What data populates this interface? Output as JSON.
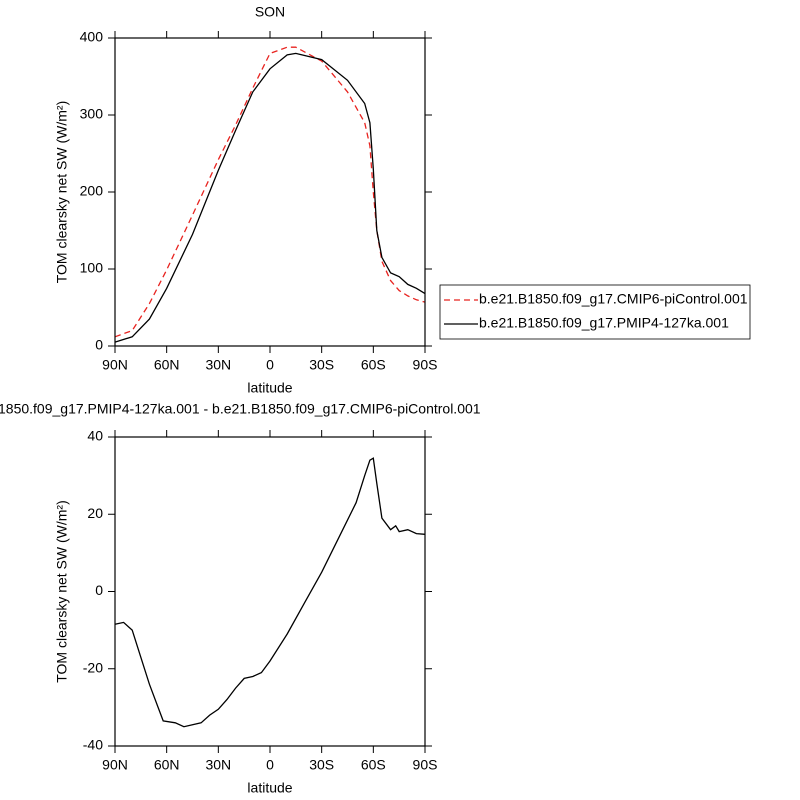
{
  "chart_data": [
    {
      "type": "line",
      "title": "SON",
      "xlabel": "latitude",
      "ylabel": "TOM clearsky net SW (W/m²)",
      "x": [
        90,
        80,
        70,
        60,
        45,
        30,
        20,
        10,
        0,
        -10,
        -15,
        -30,
        -45,
        -55,
        -58,
        -60,
        -62,
        -65,
        -70,
        -75,
        -80,
        -85,
        -90
      ],
      "xlim": [
        90,
        -90
      ],
      "xticks": [
        {
          "value": 90,
          "label": "90N"
        },
        {
          "value": 60,
          "label": "60N"
        },
        {
          "value": 30,
          "label": "30N"
        },
        0,
        {
          "value": -30,
          "label": "30S"
        },
        {
          "value": -60,
          "label": "60S"
        },
        {
          "value": -90,
          "label": "90S"
        }
      ],
      "ylim": [
        0,
        400
      ],
      "yticks": [
        0,
        100,
        200,
        300,
        400
      ],
      "legend": "right",
      "series": [
        {
          "name": "b.e21.B1850.f09_g17.CMIP6-piControl.001",
          "color": "#e8231f",
          "dash": true,
          "values": [
            12,
            20,
            55,
            99,
            170,
            242,
            287,
            335,
            380,
            388,
            388,
            370,
            330,
            290,
            260,
            200,
            150,
            110,
            85,
            72,
            65,
            60,
            57
          ]
        },
        {
          "name": "b.e21.B1850.f09_g17.PMIP4-127ka.001",
          "color": "#000000",
          "dash": false,
          "values": [
            5,
            12,
            35,
            75,
            145,
            228,
            280,
            330,
            360,
            378,
            380,
            372,
            345,
            315,
            290,
            230,
            150,
            115,
            95,
            90,
            80,
            75,
            68
          ]
        }
      ]
    },
    {
      "type": "line",
      "title": "1850.f09_g17.PMIP4-127ka.001 - b.e21.B1850.f09_g17.CMIP6-piControl.001",
      "xlabel": "latitude",
      "ylabel": "TOM clearsky net SW (W/m²)",
      "x": [
        90,
        85,
        80,
        75,
        70,
        65,
        62,
        55,
        50,
        45,
        40,
        35,
        30,
        25,
        20,
        15,
        10,
        5,
        0,
        -10,
        -20,
        -30,
        -40,
        -50,
        -55,
        -58,
        -60,
        -62,
        -65,
        -70,
        -73,
        -75,
        -80,
        -85,
        -90
      ],
      "xlim": [
        90,
        -90
      ],
      "xticks": [
        {
          "value": 90,
          "label": "90N"
        },
        {
          "value": 60,
          "label": "60N"
        },
        {
          "value": 30,
          "label": "30N"
        },
        0,
        {
          "value": -30,
          "label": "30S"
        },
        {
          "value": -60,
          "label": "60S"
        },
        {
          "value": -90,
          "label": "90S"
        }
      ],
      "ylim": [
        -40,
        40
      ],
      "yticks": [
        -40,
        -20,
        0,
        20,
        40
      ],
      "series": [
        {
          "color": "#000000",
          "dash": false,
          "values": [
            -8.5,
            -8,
            -10,
            -17,
            -24,
            -30,
            -33.5,
            -34,
            -35,
            -34.5,
            -34,
            -32,
            -30.5,
            -28,
            -25,
            -22.5,
            -22,
            -21,
            -18,
            -11,
            -3,
            5,
            14,
            23,
            30,
            34,
            34.5,
            28,
            19,
            16,
            17,
            15.5,
            16,
            15,
            14.8
          ]
        }
      ]
    }
  ]
}
